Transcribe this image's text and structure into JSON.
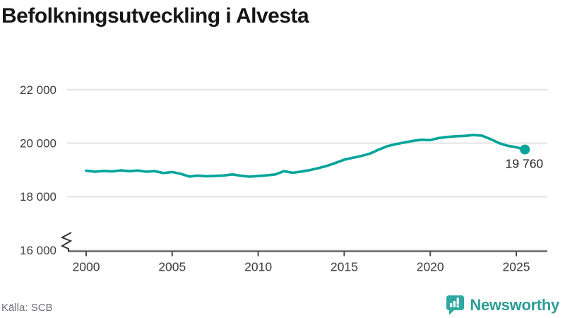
{
  "title": "Befolkningsutveckling i Alvesta",
  "source": "Källa: SCB",
  "brand": {
    "name": "Newsworthy",
    "icon": "newsworthy-speech-bubble-chart-icon",
    "icon_color": "#2fa9a2",
    "text_color": "#2d9c95"
  },
  "colors": {
    "line": "#00a49a",
    "grid": "#e3e3e3",
    "axis": "#4d4d4d",
    "tick_label": "#3d3d3d",
    "title": "#161616",
    "end_label": "#1f1f1f",
    "source_text": "#6e6e78"
  },
  "chart_data": {
    "type": "line",
    "title": "Befolkningsutveckling i Alvesta",
    "xlabel": "",
    "ylabel": "",
    "grid": "horizontal",
    "legend": "none",
    "axis_break_bottom_left": true,
    "xlim": [
      1998.9,
      2026.8
    ],
    "ylim": [
      15900,
      22400
    ],
    "xticks": [
      {
        "value": 2000,
        "label": "2000"
      },
      {
        "value": 2005,
        "label": "2005"
      },
      {
        "value": 2010,
        "label": "2010"
      },
      {
        "value": 2015,
        "label": "2015"
      },
      {
        "value": 2020,
        "label": "2020"
      },
      {
        "value": 2025,
        "label": "2025"
      }
    ],
    "yticks": [
      {
        "value": 16000,
        "label": "16 000"
      },
      {
        "value": 18000,
        "label": "18 000"
      },
      {
        "value": 20000,
        "label": "20 000"
      },
      {
        "value": 22000,
        "label": "22 000"
      }
    ],
    "end_label": "19 760",
    "end_value": 19760,
    "x": [
      2000,
      2000.5,
      2001,
      2001.5,
      2002,
      2002.5,
      2003,
      2003.5,
      2004,
      2004.5,
      2005,
      2005.5,
      2006,
      2006.5,
      2007,
      2007.5,
      2008,
      2008.5,
      2009,
      2009.5,
      2010,
      2010.5,
      2011,
      2011.5,
      2012,
      2012.5,
      2013,
      2013.5,
      2014,
      2014.5,
      2015,
      2015.5,
      2016,
      2016.5,
      2017,
      2017.5,
      2018,
      2018.5,
      2019,
      2019.5,
      2020,
      2020.5,
      2021,
      2021.5,
      2022,
      2022.5,
      2023,
      2023.5,
      2024,
      2024.5,
      2025,
      2025.5
    ],
    "values": [
      18970,
      18930,
      18960,
      18940,
      18980,
      18950,
      18975,
      18930,
      18950,
      18880,
      18920,
      18850,
      18750,
      18785,
      18760,
      18775,
      18790,
      18830,
      18780,
      18745,
      18770,
      18795,
      18830,
      18950,
      18890,
      18935,
      18990,
      19065,
      19150,
      19260,
      19380,
      19450,
      19520,
      19610,
      19755,
      19885,
      19960,
      20025,
      20085,
      20125,
      20110,
      20190,
      20230,
      20255,
      20270,
      20300,
      20280,
      20150,
      20000,
      19900,
      19845,
      19760
    ]
  }
}
